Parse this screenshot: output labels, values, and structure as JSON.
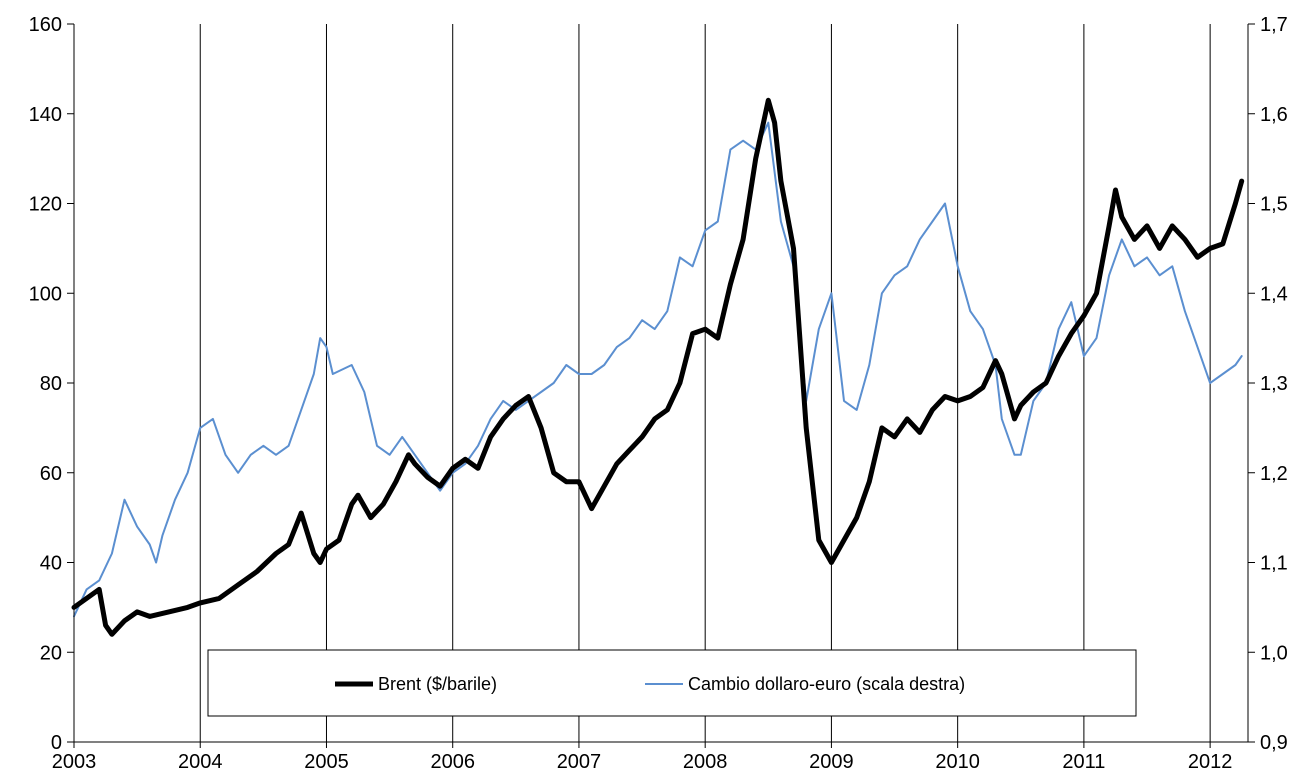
{
  "chart_data": {
    "type": "line",
    "title": "",
    "xlabel": "",
    "ylabel": "",
    "x_ticks": [
      "2003",
      "2004",
      "2005",
      "2006",
      "2007",
      "2008",
      "2009",
      "2010",
      "2011",
      "2012"
    ],
    "x_range": [
      2003.0,
      2012.3
    ],
    "y_left": {
      "range": [
        0,
        160
      ],
      "ticks": [
        "0",
        "20",
        "40",
        "60",
        "80",
        "100",
        "120",
        "140",
        "160"
      ]
    },
    "y_right": {
      "range": [
        0.9,
        1.7
      ],
      "ticks": [
        "0,9",
        "1,0",
        "1,1",
        "1,2",
        "1,3",
        "1,4",
        "1,5",
        "1,6",
        "1,7"
      ]
    },
    "grid": "vertical lines at each year",
    "legend_position": "bottom-center",
    "colors": {
      "brent": "#000000",
      "cambio": "#5b8fd0"
    },
    "series": [
      {
        "name": "Brent ($/barile)",
        "axis": "left",
        "x": [
          2003.0,
          2003.1,
          2003.2,
          2003.25,
          2003.3,
          2003.4,
          2003.5,
          2003.6,
          2003.75,
          2003.9,
          2004.0,
          2004.15,
          2004.3,
          2004.45,
          2004.6,
          2004.7,
          2004.8,
          2004.9,
          2004.95,
          2005.0,
          2005.1,
          2005.2,
          2005.25,
          2005.35,
          2005.45,
          2005.55,
          2005.65,
          2005.7,
          2005.8,
          2005.9,
          2006.0,
          2006.1,
          2006.2,
          2006.3,
          2006.4,
          2006.5,
          2006.6,
          2006.7,
          2006.8,
          2006.9,
          2007.0,
          2007.1,
          2007.2,
          2007.3,
          2007.4,
          2007.5,
          2007.6,
          2007.7,
          2007.8,
          2007.9,
          2008.0,
          2008.1,
          2008.2,
          2008.3,
          2008.4,
          2008.5,
          2008.55,
          2008.6,
          2008.7,
          2008.8,
          2008.9,
          2009.0,
          2009.1,
          2009.2,
          2009.3,
          2009.4,
          2009.5,
          2009.6,
          2009.7,
          2009.8,
          2009.9,
          2010.0,
          2010.1,
          2010.2,
          2010.3,
          2010.35,
          2010.45,
          2010.5,
          2010.6,
          2010.7,
          2010.8,
          2010.9,
          2011.0,
          2011.1,
          2011.2,
          2011.25,
          2011.3,
          2011.4,
          2011.5,
          2011.6,
          2011.7,
          2011.8,
          2011.9,
          2012.0,
          2012.1,
          2012.2,
          2012.25
        ],
        "values": [
          30,
          32,
          34,
          26,
          24,
          27,
          29,
          28,
          29,
          30,
          31,
          32,
          35,
          38,
          42,
          44,
          51,
          42,
          40,
          43,
          45,
          53,
          55,
          50,
          53,
          58,
          64,
          62,
          59,
          57,
          61,
          63,
          61,
          68,
          72,
          75,
          77,
          70,
          60,
          58,
          58,
          52,
          57,
          62,
          65,
          68,
          72,
          74,
          80,
          91,
          92,
          90,
          102,
          112,
          130,
          143,
          138,
          125,
          110,
          70,
          45,
          40,
          45,
          50,
          58,
          70,
          68,
          72,
          69,
          74,
          77,
          76,
          77,
          79,
          85,
          82,
          72,
          75,
          78,
          80,
          86,
          91,
          95,
          100,
          115,
          123,
          117,
          112,
          115,
          110,
          115,
          112,
          108,
          110,
          111,
          120,
          125
        ]
      },
      {
        "name": "Cambio dollaro-euro (scala destra)",
        "axis": "right",
        "x": [
          2003.0,
          2003.1,
          2003.2,
          2003.3,
          2003.4,
          2003.5,
          2003.6,
          2003.65,
          2003.7,
          2003.8,
          2003.9,
          2004.0,
          2004.1,
          2004.2,
          2004.3,
          2004.4,
          2004.5,
          2004.6,
          2004.7,
          2004.8,
          2004.9,
          2004.95,
          2005.0,
          2005.05,
          2005.2,
          2005.3,
          2005.4,
          2005.5,
          2005.6,
          2005.7,
          2005.8,
          2005.9,
          2006.0,
          2006.1,
          2006.2,
          2006.3,
          2006.4,
          2006.5,
          2006.6,
          2006.7,
          2006.8,
          2006.9,
          2007.0,
          2007.1,
          2007.2,
          2007.3,
          2007.4,
          2007.5,
          2007.6,
          2007.7,
          2007.8,
          2007.9,
          2008.0,
          2008.1,
          2008.2,
          2008.3,
          2008.4,
          2008.5,
          2008.6,
          2008.7,
          2008.8,
          2008.9,
          2009.0,
          2009.1,
          2009.2,
          2009.3,
          2009.4,
          2009.5,
          2009.6,
          2009.7,
          2009.8,
          2009.9,
          2010.0,
          2010.1,
          2010.2,
          2010.3,
          2010.35,
          2010.45,
          2010.5,
          2010.6,
          2010.7,
          2010.8,
          2010.9,
          2011.0,
          2011.1,
          2011.2,
          2011.3,
          2011.4,
          2011.5,
          2011.6,
          2011.7,
          2011.8,
          2011.9,
          2012.0,
          2012.1,
          2012.2,
          2012.25
        ],
        "values": [
          1.04,
          1.07,
          1.08,
          1.11,
          1.17,
          1.14,
          1.12,
          1.1,
          1.13,
          1.17,
          1.2,
          1.25,
          1.26,
          1.22,
          1.2,
          1.22,
          1.23,
          1.22,
          1.23,
          1.27,
          1.31,
          1.35,
          1.34,
          1.31,
          1.32,
          1.29,
          1.23,
          1.22,
          1.24,
          1.22,
          1.2,
          1.18,
          1.2,
          1.21,
          1.23,
          1.26,
          1.28,
          1.27,
          1.28,
          1.29,
          1.3,
          1.32,
          1.31,
          1.31,
          1.32,
          1.34,
          1.35,
          1.37,
          1.36,
          1.38,
          1.44,
          1.43,
          1.47,
          1.48,
          1.56,
          1.57,
          1.56,
          1.59,
          1.48,
          1.43,
          1.28,
          1.36,
          1.4,
          1.28,
          1.27,
          1.32,
          1.4,
          1.42,
          1.43,
          1.46,
          1.48,
          1.5,
          1.43,
          1.38,
          1.36,
          1.32,
          1.26,
          1.22,
          1.22,
          1.28,
          1.3,
          1.36,
          1.39,
          1.33,
          1.35,
          1.42,
          1.46,
          1.43,
          1.44,
          1.42,
          1.43,
          1.38,
          1.34,
          1.3,
          1.31,
          1.32,
          1.33
        ]
      }
    ]
  }
}
